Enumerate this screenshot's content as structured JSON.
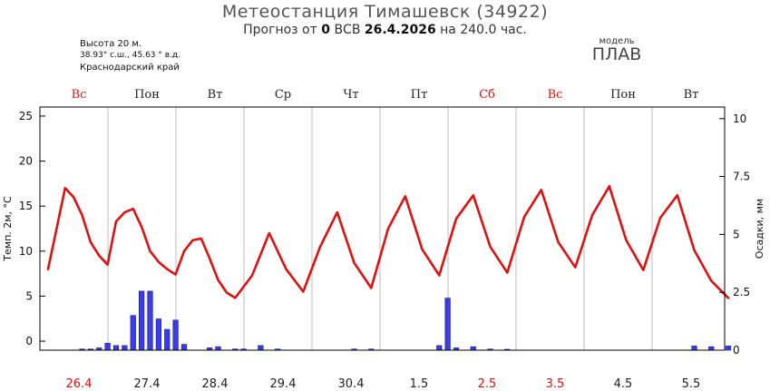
{
  "header": {
    "title": "Метеостанция Тимашевск (34922)",
    "subtitle_prefix": "Прогноз от",
    "run_hour": "0",
    "run_tz": "ВСВ",
    "run_date": "26.4.2026",
    "horizon": "на 240.0 час."
  },
  "station": {
    "altitude": "Высота 20 м.",
    "coords": "38.93° с.ш., 45.63 ° в.д.",
    "region": "Краснодарский край"
  },
  "model": {
    "label": "модель",
    "name": "ПЛАВ"
  },
  "colors": {
    "temperature": "#e01010",
    "precipitation": "#3a3af0",
    "weekend": "#e01010",
    "grid": "#bbbbbb"
  },
  "chart_data": {
    "type": "line+bar",
    "days": [
      {
        "weekday": "Вс",
        "date": "26.4",
        "weekend": true
      },
      {
        "weekday": "Пон",
        "date": "27.4",
        "weekend": false
      },
      {
        "weekday": "Вт",
        "date": "28.4",
        "weekend": false
      },
      {
        "weekday": "Ср",
        "date": "29.4",
        "weekend": false
      },
      {
        "weekday": "Чт",
        "date": "30.4",
        "weekend": false
      },
      {
        "weekday": "Пт",
        "date": "1.5",
        "weekend": false
      },
      {
        "weekday": "Сб",
        "date": "2.5",
        "weekend": true
      },
      {
        "weekday": "Вс",
        "date": "3.5",
        "weekend": true
      },
      {
        "weekday": "Пон",
        "date": "4.5",
        "weekend": false
      },
      {
        "weekday": "Вт",
        "date": "5.5",
        "weekend": false
      }
    ],
    "y_left": {
      "label": "Темп. 2м, °C",
      "ticks": [
        0,
        5,
        10,
        15,
        20,
        25
      ],
      "range": [
        -1,
        26
      ]
    },
    "y_right": {
      "label": "Осадки, мм",
      "ticks": [
        "0",
        "2.5",
        "5",
        "7.5",
        "10"
      ],
      "range": [
        0,
        10.5
      ]
    },
    "temperature": {
      "hours": [
        0,
        6,
        9,
        12,
        15,
        18,
        21,
        24,
        27,
        30,
        33,
        36,
        39,
        42,
        45,
        48,
        51,
        54,
        57,
        60,
        63,
        66,
        72,
        78,
        84,
        90,
        96,
        102,
        108,
        114,
        120,
        126,
        132,
        138,
        144,
        150,
        156,
        162,
        168,
        174,
        180,
        186,
        192,
        198,
        204,
        210,
        216,
        222,
        228,
        234,
        240
      ],
      "values": [
        8,
        17,
        16,
        14,
        11,
        9.5,
        8.5,
        13.3,
        14.3,
        14.7,
        12.7,
        10,
        8.8,
        8,
        7.4,
        10,
        11.2,
        11.4,
        9.2,
        6.8,
        5.4,
        4.8,
        7.3,
        12,
        8,
        5.5,
        10.5,
        14.3,
        8.7,
        5.9,
        12.5,
        16.1,
        10.2,
        7.3,
        13.6,
        16.2,
        10.5,
        7.6,
        13.8,
        16.8,
        11,
        8.2,
        14,
        17.2,
        11.2,
        7.9,
        13.7,
        16.2,
        10.1,
        6.7,
        4.8
      ]
    },
    "precipitation": {
      "hours": [
        12,
        15,
        18,
        21,
        24,
        27,
        30,
        33,
        36,
        39,
        42,
        45,
        48,
        57,
        60,
        66,
        69,
        75,
        81,
        108,
        114,
        138,
        141,
        144,
        150,
        156,
        162,
        228,
        234,
        240
      ],
      "values": [
        0.05,
        0.05,
        0.1,
        0.3,
        0.2,
        0.2,
        1.5,
        2.55,
        2.55,
        1.35,
        0.9,
        1.3,
        0.25,
        0.1,
        0.15,
        0.05,
        0.05,
        0.2,
        0.05,
        0.05,
        0.05,
        0.2,
        2.25,
        0.1,
        0.15,
        0.05,
        0.02,
        0.18,
        0.15,
        0.18
      ]
    }
  }
}
